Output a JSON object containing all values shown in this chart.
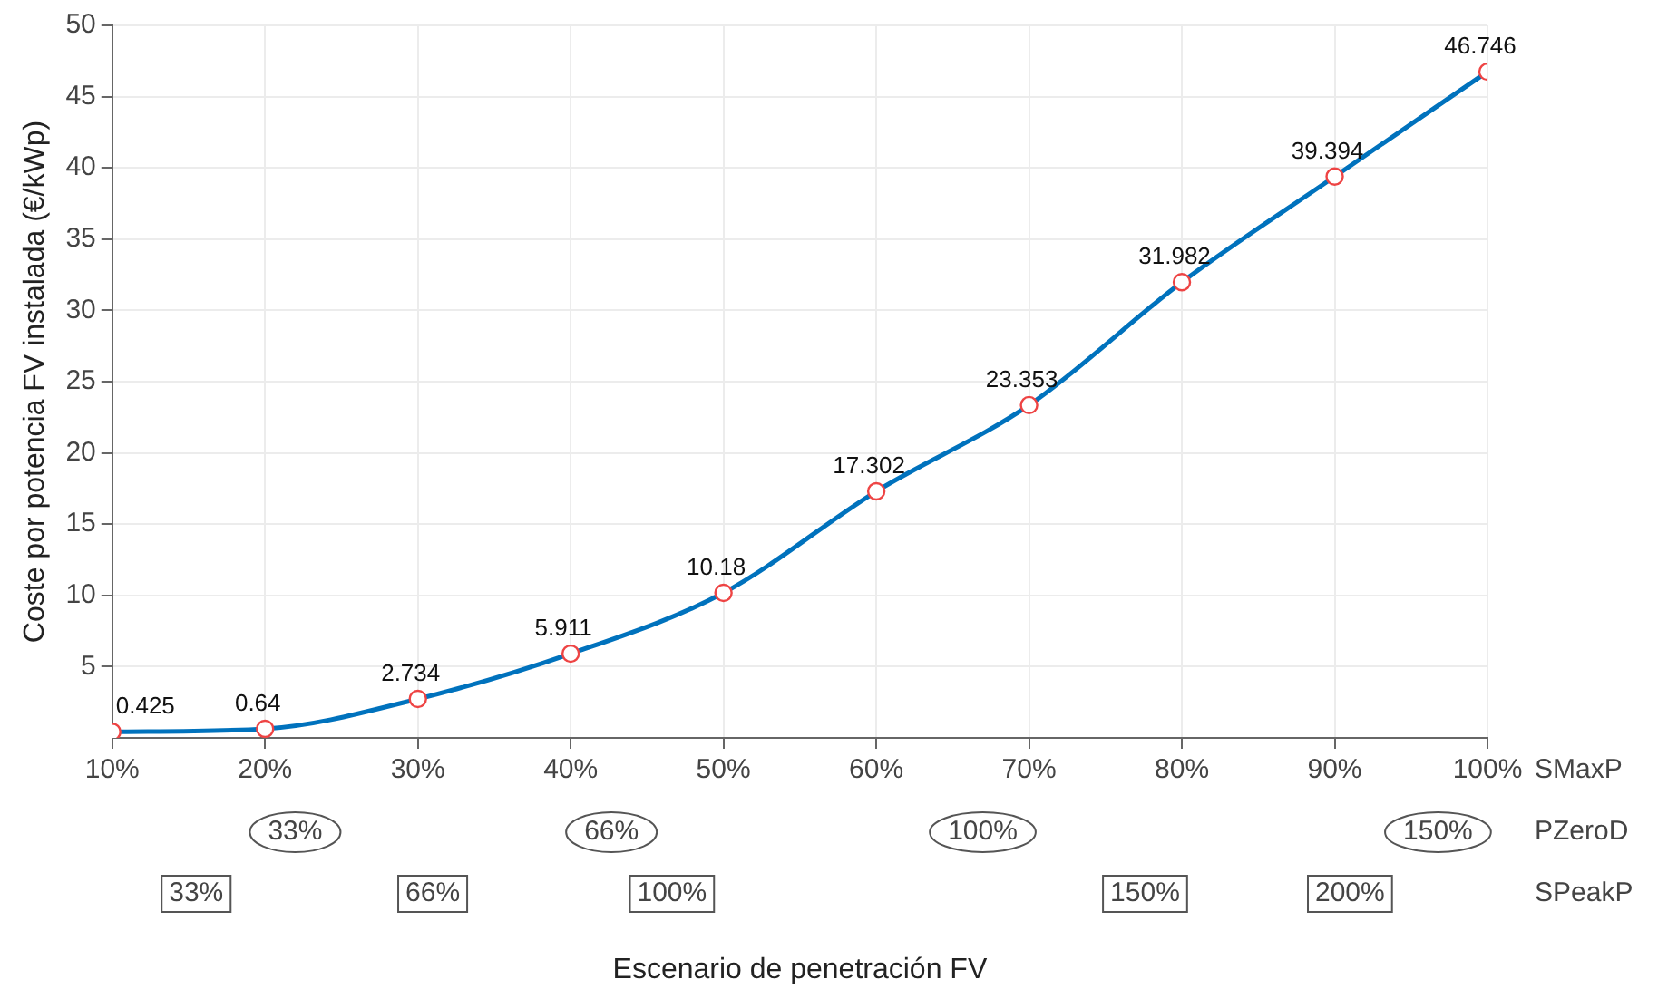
{
  "chart_data": {
    "type": "line",
    "ylabel": "Coste por potencia FV instalada (€/kWp)",
    "x": [
      10,
      20,
      30,
      40,
      50,
      60,
      70,
      80,
      90,
      100
    ],
    "series": [
      {
        "color": "#0072bd",
        "values": [
          0.425,
          0.64,
          2.734,
          5.911,
          10.18,
          17.302,
          23.353,
          31.982,
          39.394,
          46.746
        ]
      }
    ],
    "xlim": [
      10,
      100
    ],
    "xticks": [
      {
        "value": 10,
        "label": "10%"
      },
      {
        "value": 20,
        "label": "20%"
      },
      {
        "value": 30,
        "label": "30%"
      },
      {
        "value": 40,
        "label": "40%"
      },
      {
        "value": 50,
        "label": "50%"
      },
      {
        "value": 60,
        "label": "60%"
      },
      {
        "value": 70,
        "label": "70%"
      },
      {
        "value": 80,
        "label": "80%"
      },
      {
        "value": 90,
        "label": "90%"
      },
      {
        "value": 100,
        "label": "100%"
      }
    ],
    "annotations": [
      "SMaxP",
      "PZeroD",
      "33%",
      "66%",
      "100%",
      "150%",
      "SPeakP",
      "33%",
      "66%",
      "100%",
      "150%",
      "200%",
      "Escenario de penetración FV"
    ],
    "ylim": [
      0,
      50
    ],
    "yticks": [
      5,
      10,
      15,
      20,
      25,
      30,
      35,
      40,
      45,
      50
    ],
    "grid": true,
    "marker": "circle",
    "line_style": "solid",
    "data_labels": true,
    "legend": false
  }
}
